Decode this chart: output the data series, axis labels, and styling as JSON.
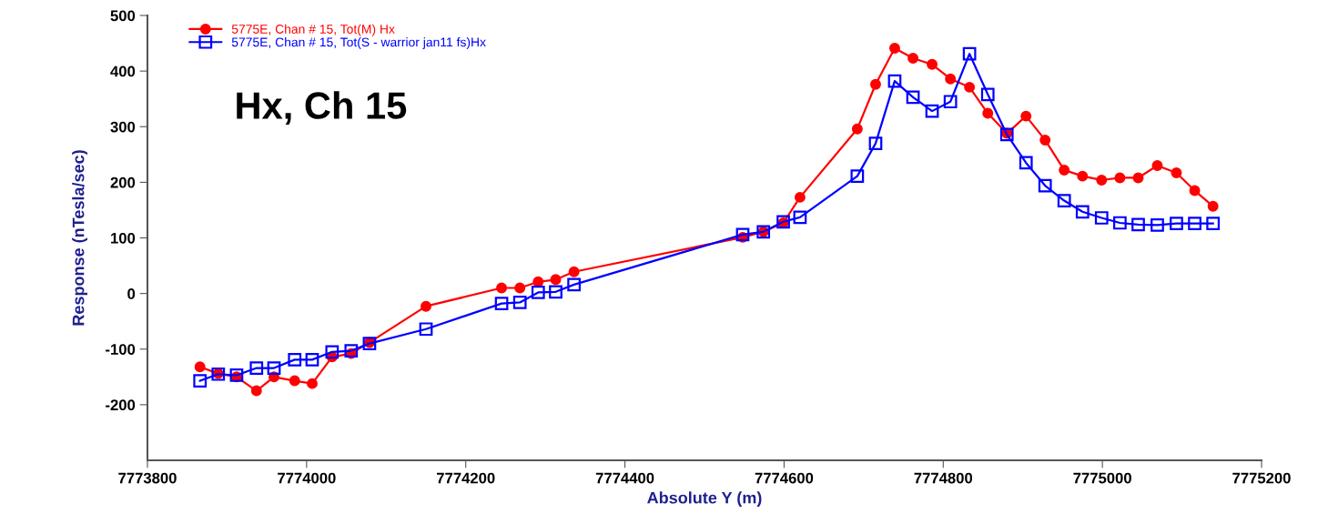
{
  "chart_data": {
    "type": "line",
    "xlabel": "Absolute Y (m)",
    "ylabel": "Response (nTesla/sec)",
    "annotations": [
      "Hx, Ch 15"
    ],
    "xlim": [
      7773800,
      7775200
    ],
    "xticks": [
      7773800,
      7774000,
      7774200,
      7774400,
      7774600,
      7774800,
      7775000,
      7775200
    ],
    "ylim": [
      -300,
      500
    ],
    "yticks": [
      -200,
      -100,
      0,
      100,
      200,
      300,
      400,
      500
    ],
    "grid": false,
    "legend": "top left",
    "x": [
      7773866,
      7773889,
      7773912,
      7773937,
      7773959,
      7773985,
      7774007,
      7774032,
      7774056,
      7774079,
      7774150,
      7774245,
      7774268,
      7774291,
      7774313,
      7774336,
      7774548,
      7774574,
      7774599,
      7774620,
      7774692,
      7774715,
      7774739,
      7774762,
      7774786,
      7774809,
      7774833,
      7774856,
      7774880,
      7774904,
      7774928,
      7774952,
      7774975,
      7774999,
      7775022,
      7775045,
      7775069,
      7775093,
      7775116,
      7775139
    ],
    "series": [
      {
        "name": "5775E, Chan # 15, Tot(M) Hx",
        "color": "#ff0000",
        "marker": "circle",
        "values": [
          -132,
          -144,
          -150,
          -175,
          -150,
          -157,
          -162,
          -114,
          -108,
          -88,
          -23,
          10,
          10,
          21,
          25,
          39,
          101,
          111,
          127,
          173,
          296,
          376,
          441,
          423,
          412,
          386,
          371,
          324,
          288,
          319,
          276,
          222,
          211,
          204,
          208,
          208,
          230,
          217,
          185,
          157
        ]
      },
      {
        "name": "5775E, Chan # 15, Tot(S - warrior jan11 fs)Hx",
        "color": "#0000ff",
        "marker": "square",
        "values": [
          -157,
          -145,
          -147,
          -134,
          -134,
          -119,
          -119,
          -105,
          -103,
          -90,
          -64,
          -18,
          -16,
          2,
          3,
          16,
          106,
          111,
          129,
          137,
          211,
          270,
          382,
          353,
          328,
          345,
          431,
          358,
          286,
          235,
          194,
          167,
          147,
          136,
          127,
          124,
          123,
          126,
          126,
          126
        ]
      }
    ]
  }
}
